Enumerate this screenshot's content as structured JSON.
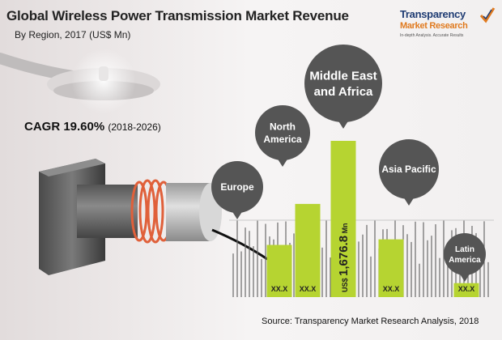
{
  "header": {
    "title": "Global Wireless Power Transmission Market Revenue",
    "subtitle": "By Region, 2017 (US$ Mn)"
  },
  "cagr": {
    "label": "CAGR 19.60%",
    "years": "(2018-2026)"
  },
  "logo": {
    "line1": "Transparency",
    "line2": "Market Research",
    "line3": "In-depth Analysis. Accurate Results",
    "icon": "check-mark-icon",
    "colors": {
      "primary": "#1f3c73",
      "accent": "#e07a1f"
    }
  },
  "source": "Source: Transparency Market Research Analysis, 2018",
  "colors": {
    "bar": "#b6d431",
    "bubble": "#555555"
  },
  "chart_data": {
    "type": "bar",
    "categories": [
      "Europe",
      "North America",
      "Middle East and Africa",
      "Asia Pacific",
      "Latin America"
    ],
    "category_lines": [
      [
        "Europe"
      ],
      [
        "North",
        "America"
      ],
      [
        "Middle East",
        "and Africa"
      ],
      [
        "Asia Pacific"
      ],
      [
        "Latin",
        "America"
      ]
    ],
    "values": [
      560,
      1000,
      1676.8,
      620,
      150
    ],
    "data_labels": [
      "XX.X",
      "XX.X",
      "US$ 1,676.8 Mn",
      "XX.X",
      "XX.X"
    ],
    "highlight": {
      "index": 2,
      "prefix": "US$",
      "number": "1,676.8",
      "unit": "Mn"
    },
    "ylim": [
      0,
      1800
    ],
    "grid": false,
    "legend": "none"
  }
}
